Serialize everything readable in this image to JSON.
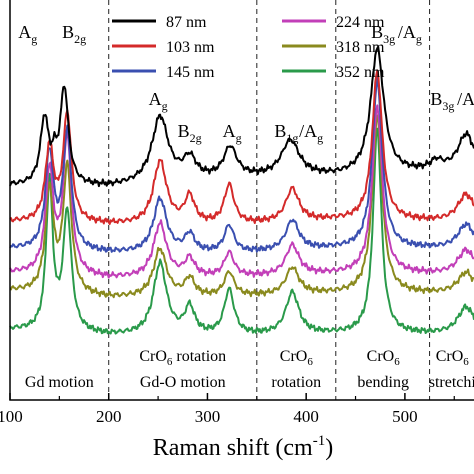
{
  "chart_data": {
    "type": "line",
    "title": "",
    "xlabel": "Raman shift (cm",
    "xlabel_superscript": "-1",
    "xlabel_end": ")",
    "ylabel": "",
    "xlim": [
      100,
      570
    ],
    "xticks": [
      100,
      200,
      300,
      400,
      500
    ],
    "xtick_labels": [
      "100",
      "200",
      "300",
      "400",
      "500"
    ],
    "grid": false,
    "legend": {
      "placement": "top",
      "entries": [
        {
          "label": "87 nm",
          "color": "#000000"
        },
        {
          "label": "103 nm",
          "color": "#d42a2a"
        },
        {
          "label": "145 nm",
          "color": "#3a4fb0"
        },
        {
          "label": "224 nm",
          "color": "#c23fb8"
        },
        {
          "label": "318 nm",
          "color": "#8a8a1e"
        },
        {
          "label": "352 nm",
          "color": "#2a9a4a"
        }
      ]
    },
    "dashed_lines_x": [
      200,
      350,
      430,
      525
    ],
    "peak_labels": [
      {
        "main": "A",
        "sub": "g",
        "x": 118,
        "level": 0
      },
      {
        "main": "B",
        "sub": "2g",
        "x": 165,
        "level": 0
      },
      {
        "main": "A",
        "sub": "g",
        "x": 250,
        "level": 1
      },
      {
        "main": "B",
        "sub": "2g",
        "x": 282,
        "level": 2
      },
      {
        "main": "A",
        "sub": "g",
        "x": 325,
        "level": 2
      },
      {
        "main": "B",
        "sub": "1g",
        "x": 380,
        "level": 2
      },
      {
        "main": "/A",
        "sub": "g",
        "x": 405,
        "level": 2
      },
      {
        "main": "B",
        "sub": "3g",
        "x": 478,
        "level": 0
      },
      {
        "main": "/A",
        "sub": "g",
        "x": 505,
        "level": 0
      },
      {
        "main": "B",
        "sub": "3g",
        "x": 538,
        "level": 1
      },
      {
        "main": "/A",
        "sub": "",
        "x": 562,
        "level": 1
      }
    ],
    "region_labels": [
      {
        "lines": [
          "Gd motion"
        ],
        "x": 150
      },
      {
        "lines": [
          "CrO6 rotation",
          "Gd-O motion"
        ],
        "x": 275
      },
      {
        "lines": [
          "CrO6",
          "rotation"
        ],
        "x": 390
      },
      {
        "lines": [
          "CrO6",
          "bending"
        ],
        "x": 478
      },
      {
        "lines": [
          "CrO6",
          "stretchi"
        ],
        "x": 548
      }
    ],
    "series": [
      {
        "name": "87 nm",
        "color": "#000000",
        "offset": 5.0,
        "peaks": [
          [
            135,
            2.2,
            5
          ],
          [
            145,
            0.6,
            3
          ],
          [
            155,
            3.2,
            5
          ],
          [
            252,
            2.2,
            10
          ],
          [
            282,
            0.7,
            8
          ],
          [
            323,
            1.0,
            8
          ],
          [
            384,
            1.2,
            11
          ],
          [
            472,
            4.2,
            8
          ],
          [
            532,
            0.3,
            8
          ],
          [
            562,
            1.2,
            10
          ]
        ],
        "baseline": [
          [
            100,
            0.3
          ],
          [
            200,
            0.25
          ],
          [
            330,
            0.55
          ],
          [
            430,
            0.6
          ],
          [
            570,
            0.8
          ]
        ]
      },
      {
        "name": "103 nm",
        "color": "#d42a2a",
        "offset": 3.8,
        "peaks": [
          [
            140,
            2.5,
            5
          ],
          [
            158,
            3.6,
            5
          ],
          [
            252,
            2.1,
            8
          ],
          [
            282,
            0.9,
            6
          ],
          [
            322,
            1.3,
            6
          ],
          [
            386,
            1.1,
            8
          ],
          [
            472,
            5.0,
            6
          ],
          [
            562,
            0.9,
            10
          ]
        ],
        "baseline": [
          [
            100,
            0.3
          ],
          [
            200,
            0.2
          ],
          [
            330,
            0.2
          ],
          [
            430,
            0.35
          ],
          [
            570,
            0.3
          ]
        ]
      },
      {
        "name": "145 nm",
        "color": "#3a4fb0",
        "offset": 2.7,
        "peaks": [
          [
            140,
            3.2,
            5
          ],
          [
            158,
            3.9,
            5
          ],
          [
            252,
            1.8,
            8
          ],
          [
            282,
            0.6,
            6
          ],
          [
            322,
            0.9,
            6
          ],
          [
            386,
            1.0,
            8
          ],
          [
            472,
            5.6,
            6
          ],
          [
            562,
            0.8,
            10
          ]
        ],
        "baseline": [
          [
            100,
            0.5
          ],
          [
            200,
            0.35
          ],
          [
            330,
            0.35
          ],
          [
            430,
            0.5
          ],
          [
            570,
            0.5
          ]
        ]
      },
      {
        "name": "224 nm",
        "color": "#c23fb8",
        "offset": 1.9,
        "peaks": [
          [
            140,
            3.4,
            5
          ],
          [
            158,
            4.6,
            5
          ],
          [
            252,
            1.8,
            8
          ],
          [
            282,
            0.6,
            6
          ],
          [
            322,
            0.8,
            6
          ],
          [
            386,
            1.0,
            8
          ],
          [
            472,
            5.6,
            6
          ],
          [
            562,
            0.8,
            10
          ]
        ],
        "baseline": [
          [
            100,
            0.5
          ],
          [
            200,
            0.3
          ],
          [
            330,
            0.35
          ],
          [
            430,
            0.45
          ],
          [
            570,
            0.45
          ]
        ]
      },
      {
        "name": "318 nm",
        "color": "#8a8a1e",
        "offset": 1.3,
        "peaks": [
          [
            140,
            3.4,
            5
          ],
          [
            158,
            4.2,
            5
          ],
          [
            252,
            1.6,
            8
          ],
          [
            282,
            0.6,
            6
          ],
          [
            322,
            0.8,
            6
          ],
          [
            386,
            0.9,
            8
          ],
          [
            472,
            5.9,
            6
          ],
          [
            562,
            0.7,
            10
          ]
        ],
        "baseline": [
          [
            100,
            0.5
          ],
          [
            200,
            0.25
          ],
          [
            330,
            0.3
          ],
          [
            430,
            0.4
          ],
          [
            570,
            0.4
          ]
        ]
      },
      {
        "name": "352 nm",
        "color": "#2a9a4a",
        "offset": 0.0,
        "peaks": [
          [
            140,
            4.9,
            4
          ],
          [
            158,
            4.0,
            5
          ],
          [
            252,
            2.4,
            8
          ],
          [
            282,
            0.9,
            6
          ],
          [
            322,
            1.5,
            6
          ],
          [
            386,
            1.4,
            8
          ],
          [
            472,
            6.9,
            5
          ],
          [
            562,
            0.9,
            10
          ]
        ],
        "baseline": [
          [
            100,
            0.5
          ],
          [
            200,
            0.3
          ],
          [
            330,
            0.3
          ],
          [
            430,
            0.35
          ],
          [
            570,
            0.35
          ]
        ]
      }
    ]
  }
}
